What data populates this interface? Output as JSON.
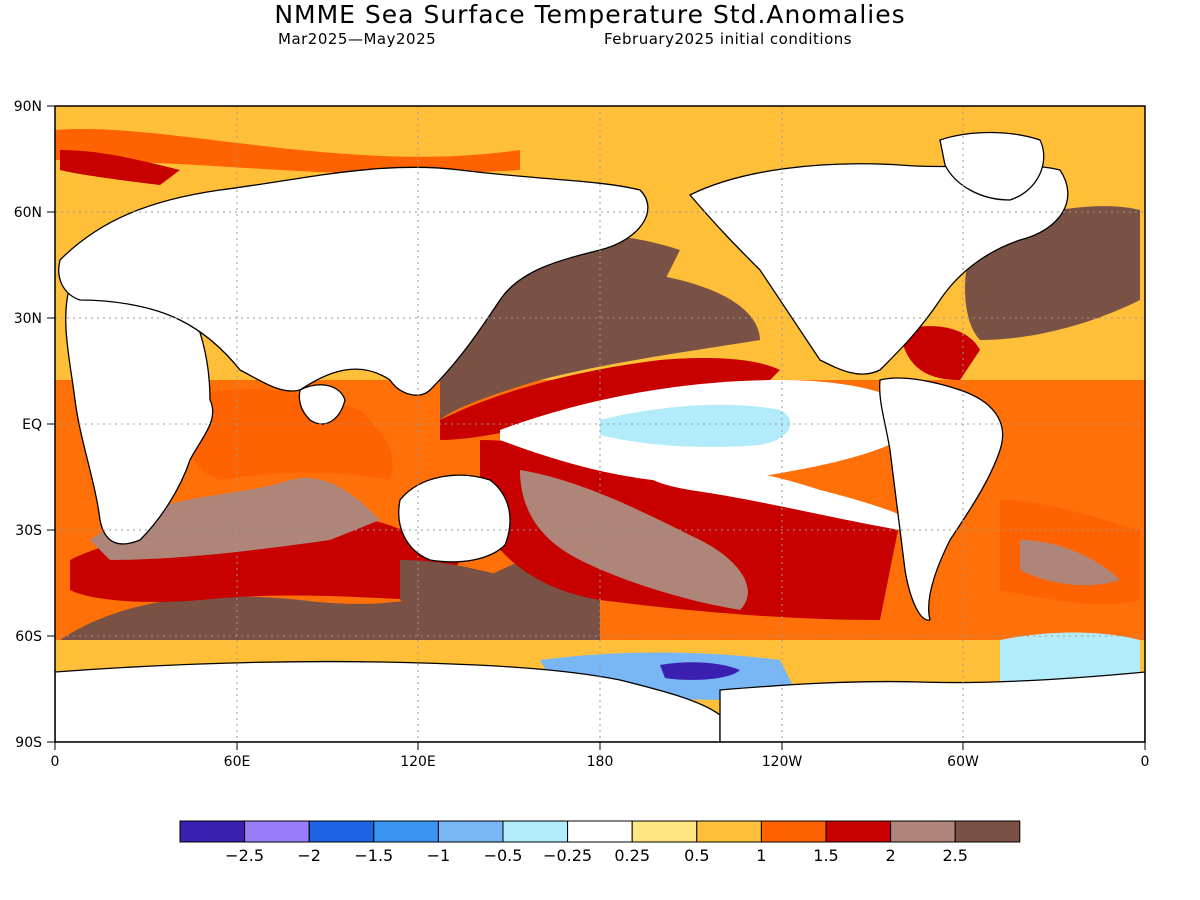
{
  "header": {
    "title": "NMME Sea Surface Temperature Std.Anomalies",
    "period": "Mar2025—May2025",
    "initial_conditions": "February2025 initial conditions"
  },
  "axes": {
    "lat_labels": [
      "90N",
      "60N",
      "30N",
      "EQ",
      "30S",
      "60S",
      "90S"
    ],
    "lon_labels": [
      "0",
      "60E",
      "120E",
      "180",
      "120W",
      "60W",
      "0"
    ]
  },
  "colorbar": {
    "colors": [
      "#3b1fb0",
      "#9a7dfa",
      "#1e63e6",
      "#3a95f2",
      "#79b6f5",
      "#b2ecfa",
      "#ffffff",
      "#ffe680",
      "#ffbf38",
      "#ff6200",
      "#c90000",
      "#ae8578",
      "#7a5245"
    ],
    "labels": [
      "−2.5",
      "−2",
      "−1.5",
      "−1",
      "−0.5",
      "−0.25",
      "0.25",
      "0.5",
      "1",
      "1.5",
      "2",
      "2.5"
    ]
  }
}
